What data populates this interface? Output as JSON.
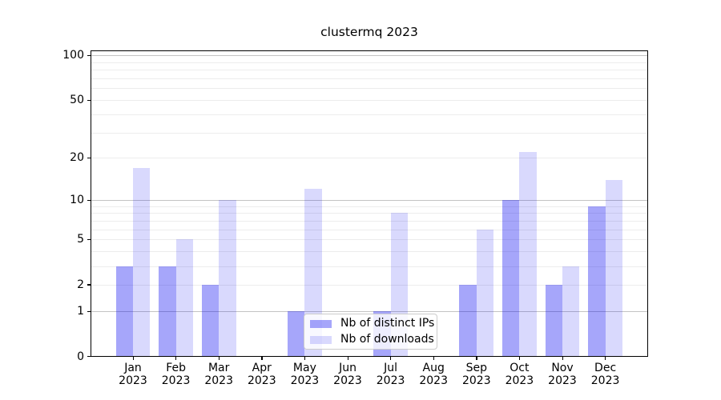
{
  "title": "clustermq 2023",
  "chart_data": {
    "type": "bar",
    "categories": [
      "Jan",
      "Feb",
      "Mar",
      "Apr",
      "May",
      "Jun",
      "Jul",
      "Aug",
      "Sep",
      "Oct",
      "Nov",
      "Dec"
    ],
    "year": "2023",
    "series": [
      {
        "name": "Nb of distinct IPs",
        "color": "rgba(0,0,240,0.35)",
        "values": [
          3,
          3,
          2,
          0,
          1,
          0,
          1,
          0,
          2,
          10,
          2,
          9
        ]
      },
      {
        "name": "Nb of downloads",
        "color": "rgba(0,0,240,0.15)",
        "values": [
          17,
          5,
          10,
          0,
          12,
          0,
          8,
          0,
          6,
          22,
          3,
          14
        ]
      }
    ],
    "yscale": "log1p",
    "ylim": [
      0,
      108
    ],
    "yticks": [
      100,
      50,
      20,
      10,
      5,
      2,
      1,
      0
    ],
    "grid": {
      "major": [
        1,
        10,
        100
      ],
      "minor": [
        2,
        3,
        4,
        5,
        6,
        7,
        8,
        9,
        20,
        30,
        40,
        50,
        60,
        70,
        80,
        90
      ]
    },
    "legend": {
      "position": "lower center",
      "frame": true
    }
  },
  "colors": {
    "grid_major": "#c3c3c3",
    "grid_minor": "#ececec",
    "spine": "#000000",
    "text": "#000000"
  }
}
